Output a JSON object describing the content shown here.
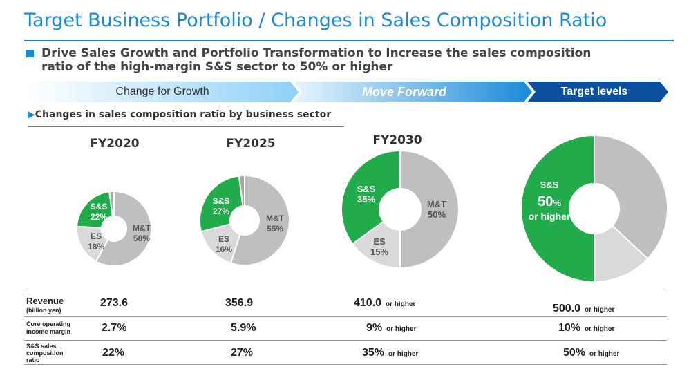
{
  "header": {
    "title": "Target Business Portfolio / Changes in Sales Composition Ratio",
    "bullet_line1": "Drive Sales Growth and Portfolio Transformation to Increase the sales composition",
    "bullet_line2": "ratio of the high-margin S&S sector to 50% or higher"
  },
  "arrows": {
    "growth": "Change for Growth",
    "forward": "Move Forward",
    "target": "Target levels"
  },
  "section_heading": "Changes in sales composition ratio by business sector",
  "colors": {
    "ss": "#22ab4b",
    "es": "#d9d9d9",
    "mt": "#bfbfbf",
    "other": "#a6a6a6",
    "accent": "#1a8ad8"
  },
  "chart_data": {
    "type": "pie",
    "charts": [
      {
        "title": "FY2020",
        "slices": [
          {
            "name": "M&T",
            "value": 58,
            "label": "58%"
          },
          {
            "name": "ES",
            "value": 18,
            "label": "18%"
          },
          {
            "name": "S&S",
            "value": 22,
            "label": "22%"
          },
          {
            "name": "",
            "value": 2,
            "label": ""
          }
        ]
      },
      {
        "title": "FY2025",
        "slices": [
          {
            "name": "M&T",
            "value": 55,
            "label": "55%"
          },
          {
            "name": "ES",
            "value": 16,
            "label": "16%"
          },
          {
            "name": "S&S",
            "value": 27,
            "label": "27%"
          },
          {
            "name": "",
            "value": 2,
            "label": ""
          }
        ]
      },
      {
        "title": "FY2030",
        "slices": [
          {
            "name": "M&T",
            "value": 50,
            "label": "50%"
          },
          {
            "name": "ES",
            "value": 15,
            "label": "15%"
          },
          {
            "name": "S&S",
            "value": 35,
            "label": "35%"
          }
        ]
      },
      {
        "title": "",
        "slices": [
          {
            "name": "",
            "value": 37,
            "label": ""
          },
          {
            "name": "",
            "value": 13,
            "label": ""
          },
          {
            "name": "S&S",
            "value": 50,
            "label": "50%",
            "label_suffix": "or higher"
          }
        ]
      }
    ]
  },
  "table": {
    "rows": [
      {
        "label": "Revenue",
        "sublabel": "(billion yen)",
        "values": [
          {
            "v": "273.6",
            "s": ""
          },
          {
            "v": "356.9",
            "s": ""
          },
          {
            "v": "410.0",
            "s": "or higher"
          },
          {
            "v": "500.0",
            "s": "or higher"
          }
        ]
      },
      {
        "label": "Core operating",
        "sublabel": "income margin",
        "values": [
          {
            "v": "2.7%",
            "s": ""
          },
          {
            "v": "5.9%",
            "s": ""
          },
          {
            "v": "9%",
            "s": "or higher"
          },
          {
            "v": "10%",
            "s": "or higher"
          }
        ]
      },
      {
        "label": "S&S sales",
        "sublabel": "composition",
        "sublabel2": "ratio",
        "values": [
          {
            "v": "22%",
            "s": ""
          },
          {
            "v": "27%",
            "s": ""
          },
          {
            "v": "35%",
            "s": "or higher"
          },
          {
            "v": "50%",
            "s": "or higher"
          }
        ]
      }
    ]
  }
}
